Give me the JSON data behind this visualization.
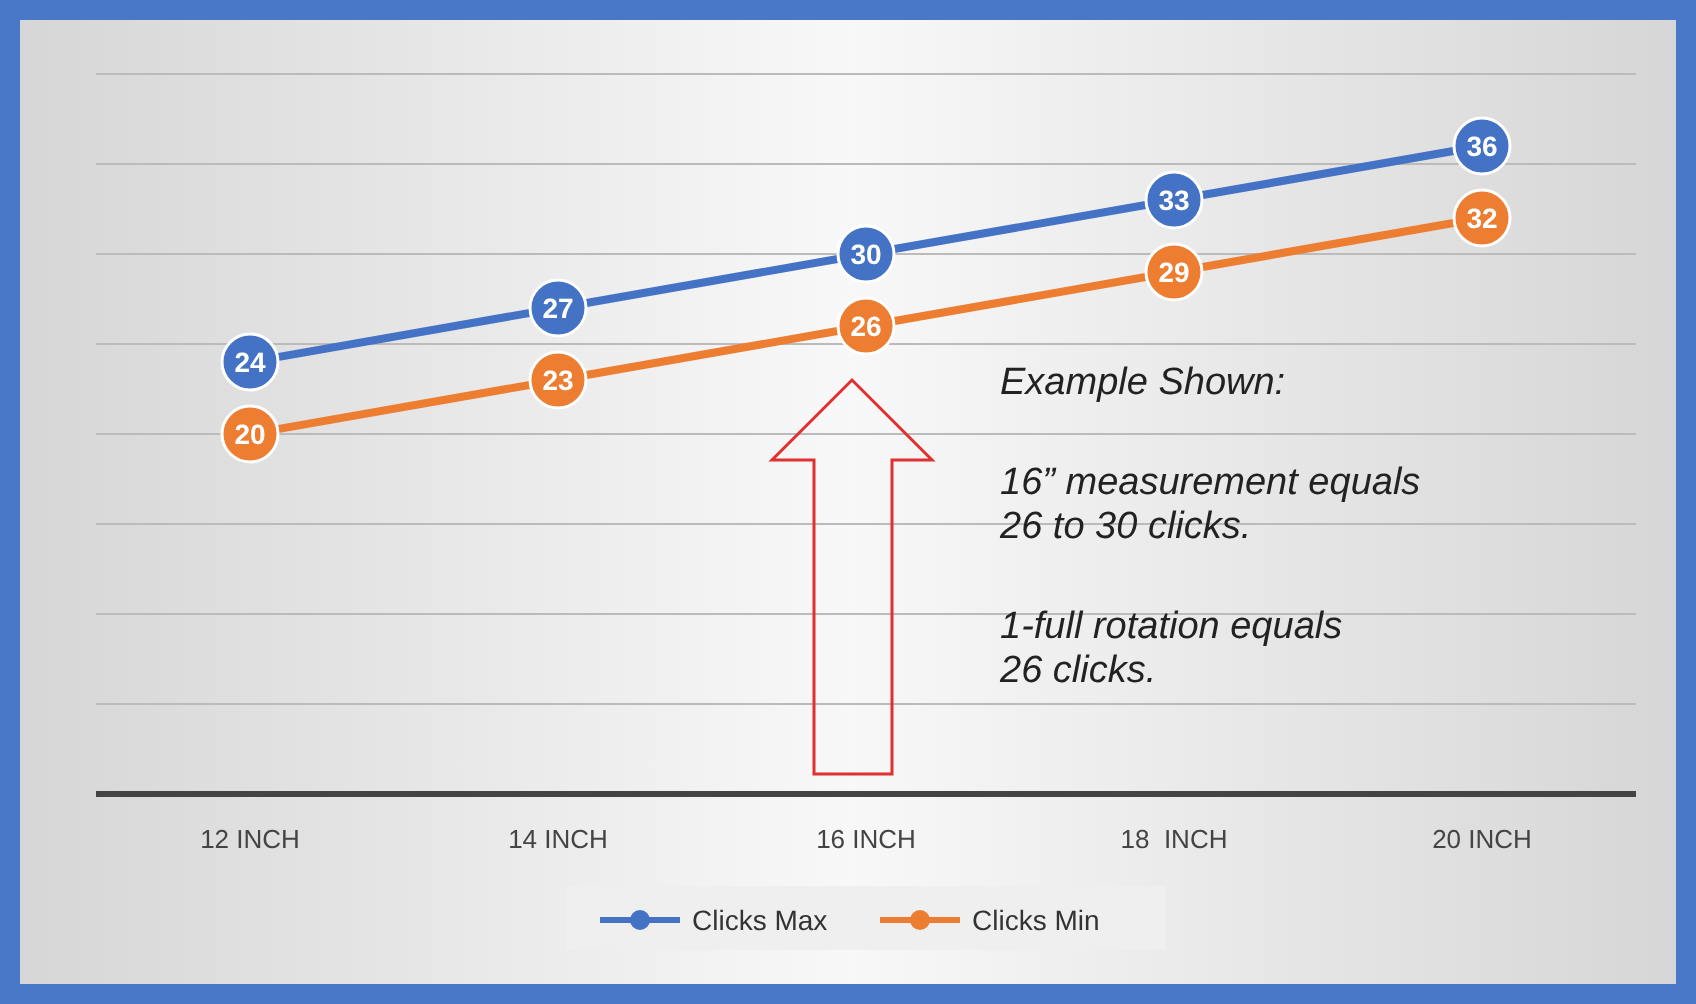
{
  "chart_data": {
    "type": "line",
    "categories": [
      "12 INCH",
      "14 INCH",
      "16 INCH",
      "18  INCH",
      "20 INCH"
    ],
    "series": [
      {
        "name": "Clicks Max",
        "color": "#4472c4",
        "values": [
          24,
          27,
          30,
          33,
          36
        ]
      },
      {
        "name": "Clicks Min",
        "color": "#ed7d31",
        "values": [
          20,
          23,
          26,
          29,
          32
        ]
      }
    ],
    "ylim": [
      0,
      40
    ],
    "yticks": [
      {
        "value": 0,
        "label": null
      },
      {
        "value": 5,
        "label": null
      },
      {
        "value": 10,
        "label": null
      },
      {
        "value": 15,
        "label": null
      },
      {
        "value": 20,
        "label": null
      },
      {
        "value": 25,
        "label": null
      },
      {
        "value": 30,
        "label": null
      },
      {
        "value": 35,
        "label": null
      },
      {
        "value": 40,
        "label": null
      }
    ],
    "tick_labels": "x",
    "grid": "y",
    "legend": "bottom",
    "marker": "circle",
    "line_style": "solid",
    "data_labels": true,
    "annotations": [
      {
        "text": "Example Shown:"
      },
      {
        "text": "16” measurement equals 26 to 30 clicks."
      },
      {
        "text": "1-full rotation equals 26 clicks."
      }
    ]
  }
}
